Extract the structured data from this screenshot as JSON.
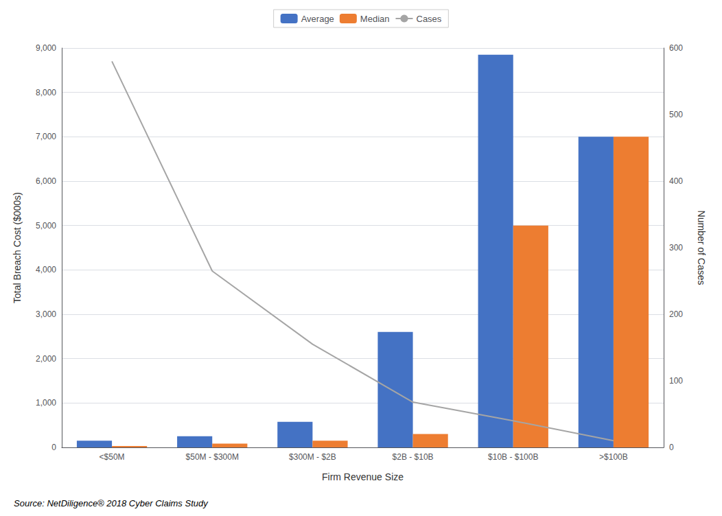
{
  "chart_data": {
    "type": "bar",
    "categories": [
      "<$50M",
      "$50M - $300M",
      "$300M - $2B",
      "$2B - $10B",
      "$10B - $100B",
      ">$100B"
    ],
    "series": [
      {
        "name": "Average",
        "type": "bar",
        "color": "#4472C4",
        "values": [
          150,
          250,
          575,
          2600,
          8850,
          7000
        ]
      },
      {
        "name": "Median",
        "type": "bar",
        "color": "#ED7D31",
        "values": [
          30,
          85,
          150,
          300,
          5000,
          7000
        ]
      },
      {
        "name": "Cases",
        "type": "line",
        "color": "#A5A5A5",
        "axis": "y2",
        "values": [
          580,
          265,
          155,
          68,
          40,
          10
        ]
      }
    ],
    "xlabel": "Firm Revenue Size",
    "ylabel": "Total Breach Cost ($000s)",
    "y2label": "Number of Cases",
    "ylim": [
      0,
      9000
    ],
    "yticks": [
      0,
      {
        "value": 1000,
        "label": "1,000"
      },
      {
        "value": 2000,
        "label": "2,000"
      },
      {
        "value": 3000,
        "label": "3,000"
      },
      {
        "value": 4000,
        "label": "4,000"
      },
      {
        "value": 5000,
        "label": "5,000"
      },
      {
        "value": 6000,
        "label": "6,000"
      },
      {
        "value": 7000,
        "label": "7,000"
      },
      {
        "value": 8000,
        "label": "8,000"
      },
      {
        "value": 9000,
        "label": "9,000"
      }
    ],
    "y2lim": [
      0,
      600
    ],
    "y2ticks": [
      0,
      100,
      200,
      300,
      400,
      500,
      600
    ],
    "grid": true,
    "legend": "top",
    "annotation": "Source: NetDiligence® 2018 Cyber Claims Study"
  }
}
